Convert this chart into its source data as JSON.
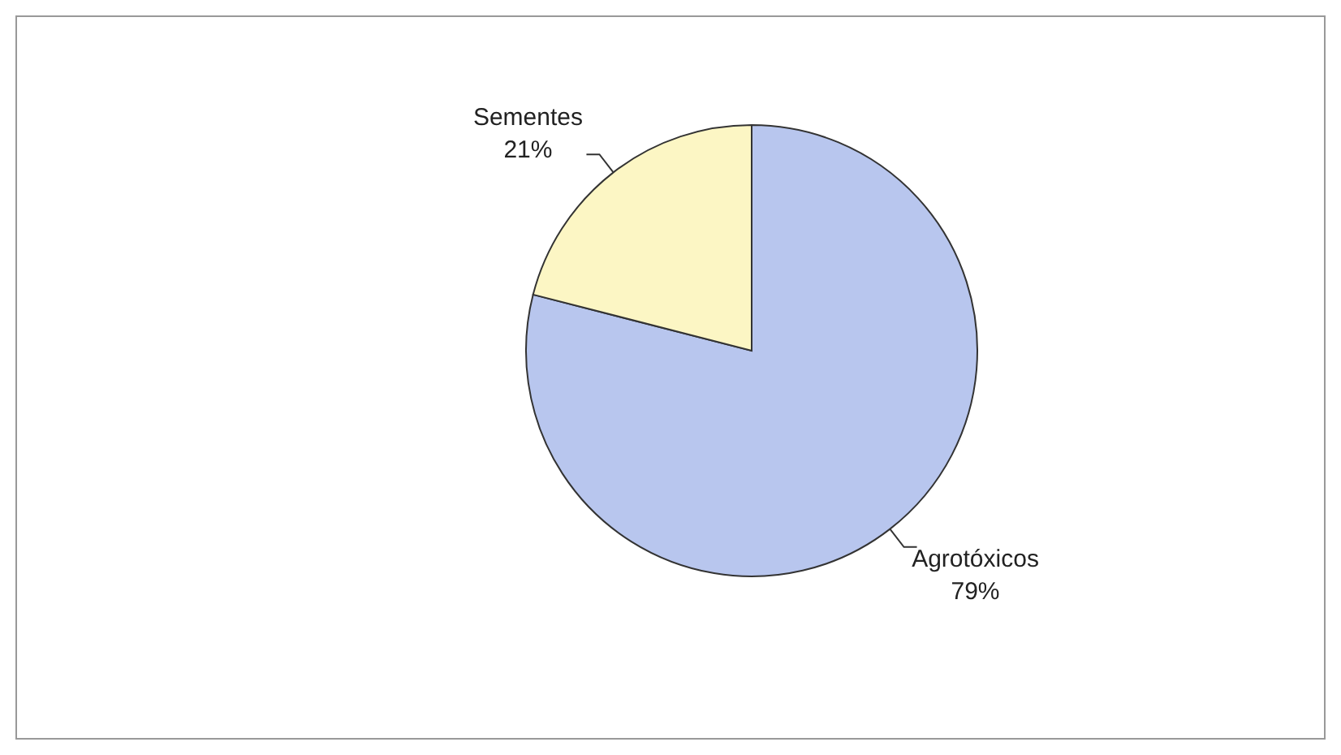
{
  "chart_data": {
    "type": "pie",
    "categories": [
      "Agrotóxicos",
      "Sementes"
    ],
    "values": [
      79,
      21
    ],
    "colors": [
      "#b8c6ee",
      "#fcf6c4"
    ],
    "value_labels": [
      "79%",
      "21%"
    ]
  }
}
